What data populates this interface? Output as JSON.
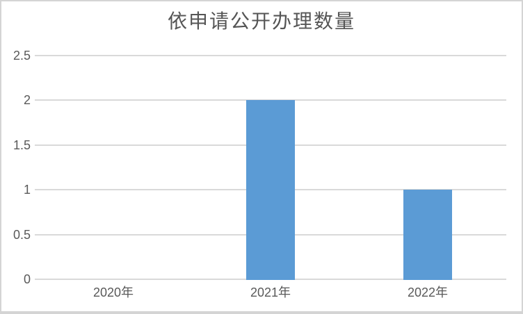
{
  "chart_data": {
    "type": "bar",
    "title": "依申请公开办理数量",
    "categories": [
      "2020年",
      "2021年",
      "2022年"
    ],
    "values": [
      0,
      2,
      1
    ],
    "xlabel": "",
    "ylabel": "",
    "ylim": [
      0,
      2.5
    ],
    "y_ticks": [
      0,
      0.5,
      1,
      1.5,
      2,
      2.5
    ],
    "y_tick_labels": [
      "0",
      "0.5",
      "1",
      "1.5",
      "2",
      "2.5"
    ],
    "grid": true,
    "legend": "none",
    "colors": {
      "bar": "#5b9bd5",
      "gridline": "#d9d9d9",
      "axis_line": "#d9d9d9",
      "tick_label": "#595959",
      "title": "#555555",
      "frame_border": "#d4d4d4",
      "background": "#ffffff"
    }
  }
}
